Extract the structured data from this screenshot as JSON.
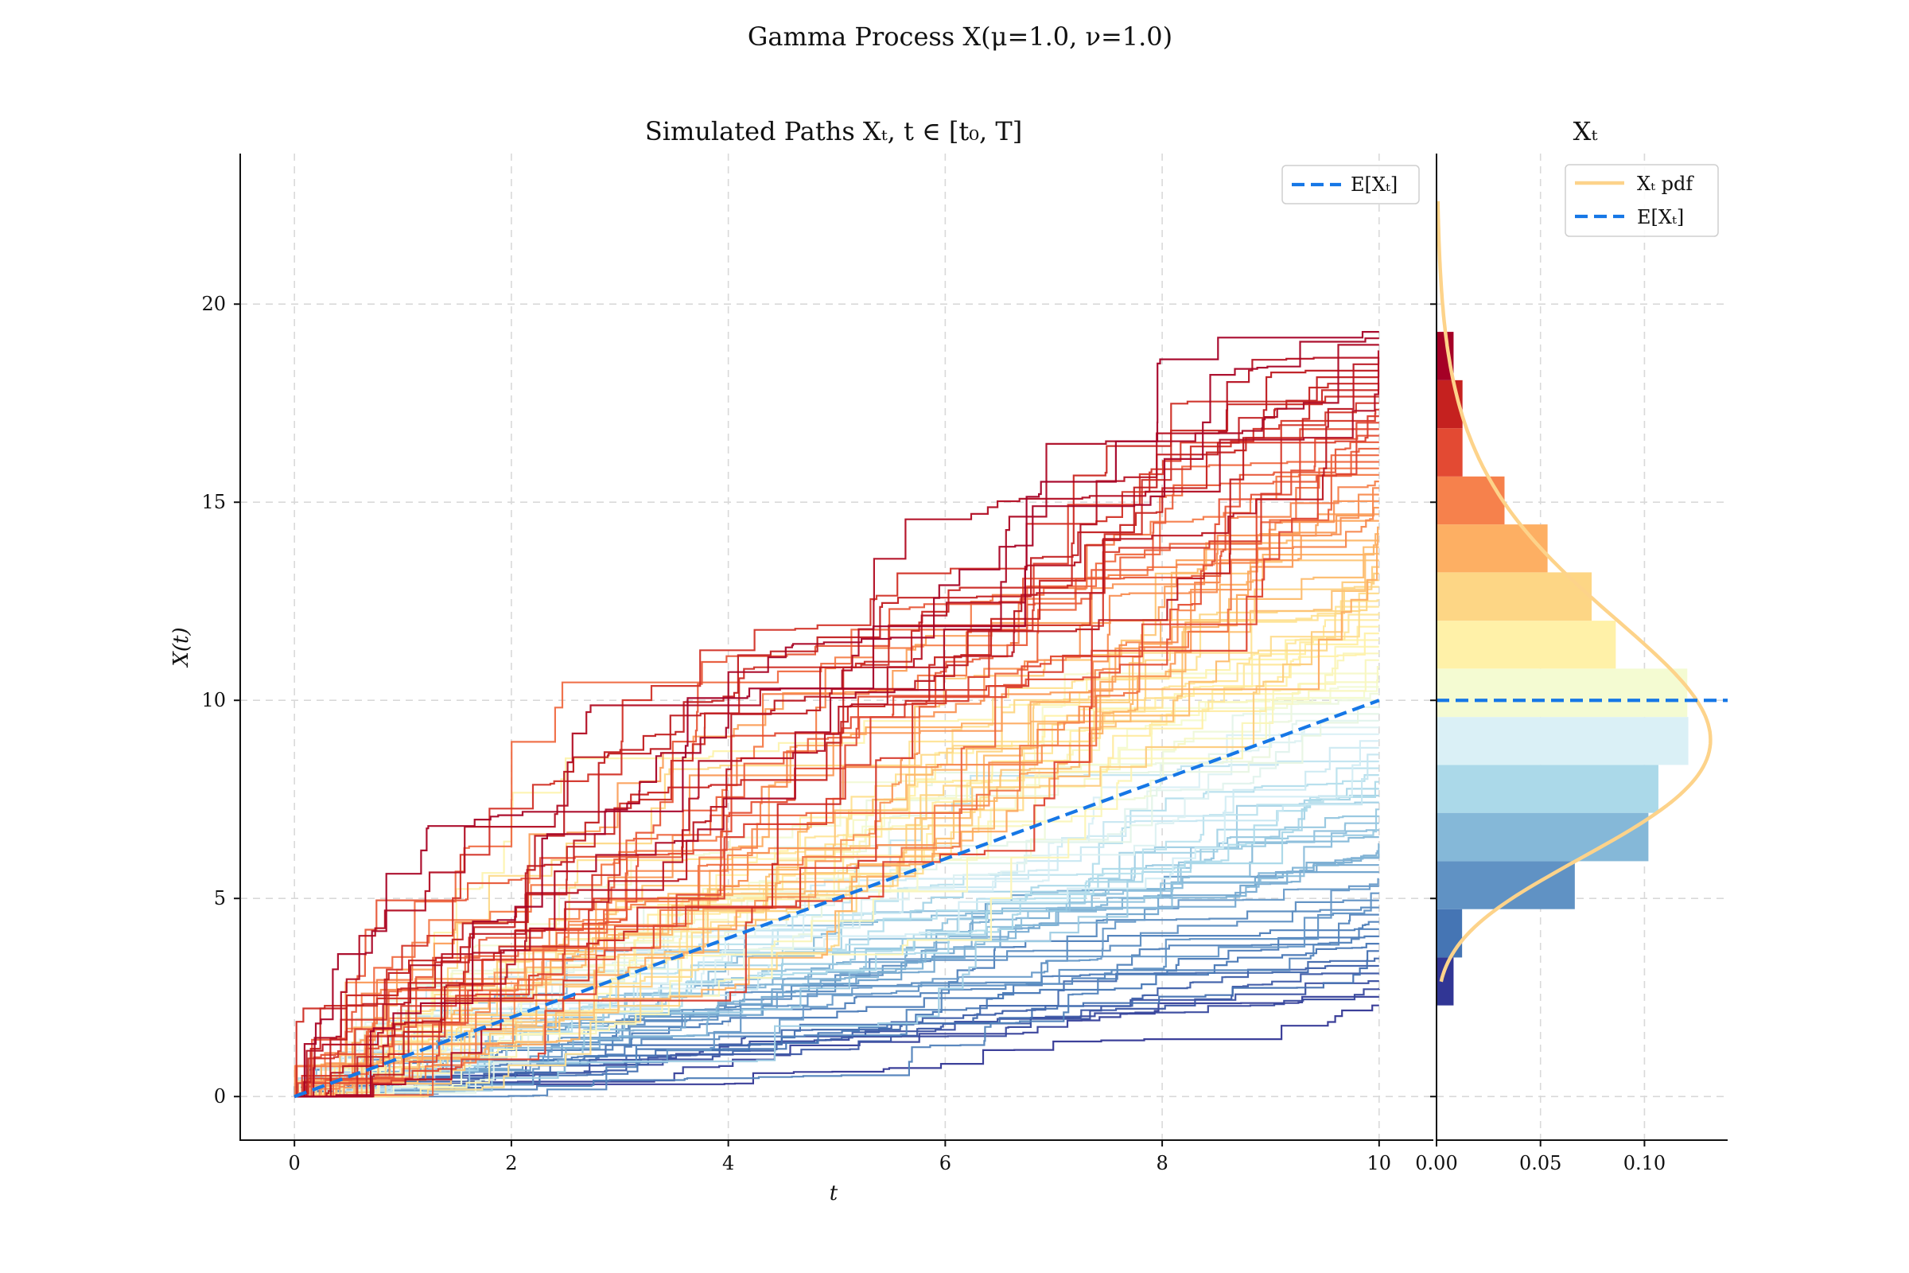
{
  "chart_data": [
    {
      "panel": "paths",
      "type": "line",
      "suptitle": "Gamma Process X(μ=1.0, ν=1.0)",
      "title": "Simulated Paths Xₜ, t ∈ [t₀, T]",
      "xlabel": "t",
      "ylabel": "X(t)",
      "xlim": [
        -0.5,
        10.5
      ],
      "ylim": [
        -1.1,
        23.8
      ],
      "xticks": [
        0,
        2,
        4,
        6,
        8,
        10
      ],
      "xtick_labels": [
        "0",
        "2",
        "4",
        "6",
        "8",
        "10"
      ],
      "yticks": [
        0,
        5,
        10,
        15,
        20
      ],
      "ytick_labels": [
        "0",
        "5",
        "10",
        "15",
        "20"
      ],
      "grid": true,
      "legend_position": "top-right",
      "colormap": "RdYlBu_r",
      "num_paths": 100,
      "path_time_range": [
        0,
        10
      ],
      "path_end_range": [
        2.3,
        19.3
      ],
      "legend": [
        {
          "label": "E[Xₜ]",
          "style": "dashed",
          "color": "#1677e6"
        }
      ],
      "mean_line": {
        "x": [
          0,
          10
        ],
        "y": [
          0,
          10
        ],
        "color": "#1677e6"
      }
    },
    {
      "panel": "marginal",
      "type": "bar",
      "orientation": "horizontal",
      "title": "Xₜ",
      "xlim": [
        0,
        0.14
      ],
      "xticks": [
        0.0,
        0.05,
        0.1
      ],
      "xtick_labels": [
        "0.00",
        "0.05",
        "0.10"
      ],
      "grid": true,
      "legend_position": "top-right",
      "legend": [
        {
          "label": "Xₜ pdf",
          "style": "solid",
          "color": "#fdd38a"
        },
        {
          "label": "E[Xₜ]",
          "style": "dashed",
          "color": "#1677e6"
        }
      ],
      "mean_y": 10,
      "pdf": {
        "distribution": "gamma",
        "shape": 10,
        "scale": 1.0,
        "y_range": [
          2.9,
          22.6
        ],
        "color": "#fdd38a"
      },
      "bin_edges": [
        2.3,
        3.51,
        4.73,
        5.94,
        7.16,
        8.37,
        9.58,
        10.8,
        12.01,
        13.23,
        14.44,
        15.65,
        16.87,
        18.08,
        19.3
      ],
      "density": [
        0.0082,
        0.0123,
        0.0665,
        0.1019,
        0.1067,
        0.1211,
        0.1206,
        0.0862,
        0.0746,
        0.0534,
        0.0327,
        0.0125,
        0.0125,
        0.0082
      ],
      "bin_colors": [
        "#313695",
        "#4575b4",
        "#6092c4",
        "#85b8d8",
        "#abd9e9",
        "#daf0f6",
        "#f4fbd2",
        "#fff1a8",
        "#fdd685",
        "#fdaf63",
        "#f6814c",
        "#e34a33",
        "#c5211f",
        "#a50026"
      ]
    }
  ]
}
